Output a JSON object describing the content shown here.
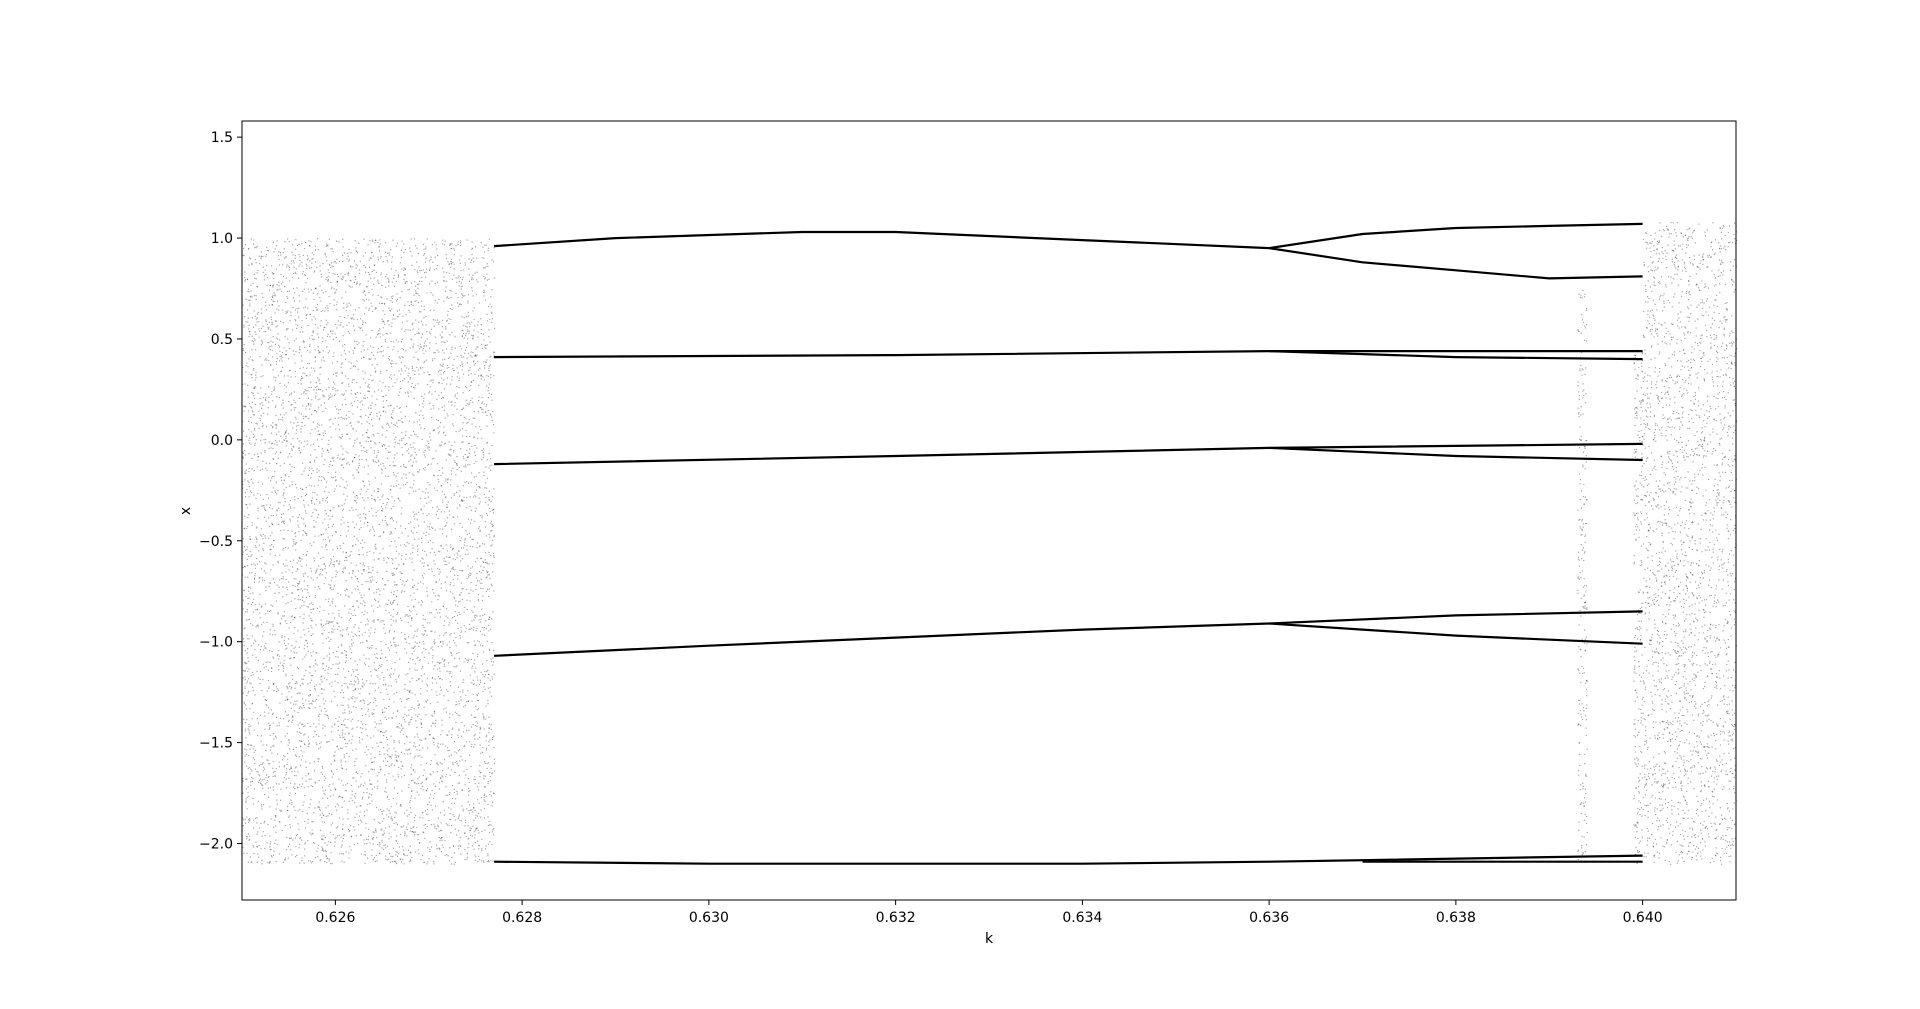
{
  "chart_data": {
    "type": "scatter",
    "title": "",
    "xlabel": "k",
    "ylabel": "x",
    "xlim": [
      0.625,
      0.641
    ],
    "ylim": [
      -2.28,
      1.58
    ],
    "grid": false,
    "legend": "none",
    "marker_color": "#000000",
    "x_ticks": [
      {
        "value": 0.626,
        "label": "0.626"
      },
      {
        "value": 0.628,
        "label": "0.628"
      },
      {
        "value": 0.63,
        "label": "0.630"
      },
      {
        "value": 0.632,
        "label": "0.632"
      },
      {
        "value": 0.634,
        "label": "0.634"
      },
      {
        "value": 0.636,
        "label": "0.636"
      },
      {
        "value": 0.638,
        "label": "0.638"
      },
      {
        "value": 0.64,
        "label": "0.640"
      }
    ],
    "y_ticks": [
      {
        "value": 1.5,
        "label": "1.5"
      },
      {
        "value": 1.0,
        "label": "1.0"
      },
      {
        "value": 0.5,
        "label": "0.5"
      },
      {
        "value": 0.0,
        "label": "0.0"
      },
      {
        "value": -0.5,
        "label": "−0.5"
      },
      {
        "value": -1.0,
        "label": "−1.0"
      },
      {
        "value": -1.5,
        "label": "−1.5"
      },
      {
        "value": -2.0,
        "label": "−2.0"
      }
    ],
    "chaotic_bands": [
      {
        "k_range": [
          0.625,
          0.6277
        ],
        "x_range": [
          -2.1,
          1.0
        ]
      },
      {
        "k_range": [
          0.6393,
          0.6394
        ],
        "x_range": [
          -2.1,
          0.75
        ]
      },
      {
        "k_range": [
          0.6399,
          0.64
        ],
        "x_range": [
          -2.1,
          0.45
        ]
      },
      {
        "k_range": [
          0.64,
          0.641
        ],
        "x_range": [
          -2.1,
          1.08
        ]
      }
    ],
    "branches": [
      {
        "k": [
          0.6277,
          0.629,
          0.631,
          0.632,
          0.634,
          0.636
        ],
        "x": [
          0.96,
          1.0,
          1.03,
          1.03,
          0.99,
          0.95
        ]
      },
      {
        "k": [
          0.636,
          0.637,
          0.638,
          0.639,
          0.64
        ],
        "x": [
          0.95,
          1.02,
          1.05,
          1.06,
          1.07
        ]
      },
      {
        "k": [
          0.636,
          0.637,
          0.638,
          0.639,
          0.64
        ],
        "x": [
          0.95,
          0.88,
          0.84,
          0.8,
          0.81
        ]
      },
      {
        "k": [
          0.6277,
          0.632,
          0.636,
          0.64
        ],
        "x": [
          0.41,
          0.42,
          0.44,
          0.44
        ]
      },
      {
        "k": [
          0.636,
          0.638,
          0.64
        ],
        "x": [
          0.44,
          0.41,
          0.4
        ]
      },
      {
        "k": [
          0.6277,
          0.632,
          0.636,
          0.64
        ],
        "x": [
          -0.12,
          -0.08,
          -0.04,
          -0.02
        ]
      },
      {
        "k": [
          0.636,
          0.638,
          0.64
        ],
        "x": [
          -0.04,
          -0.08,
          -0.1
        ]
      },
      {
        "k": [
          0.6277,
          0.63,
          0.632,
          0.634,
          0.636
        ],
        "x": [
          -1.07,
          -1.02,
          -0.98,
          -0.94,
          -0.91
        ]
      },
      {
        "k": [
          0.636,
          0.638,
          0.64
        ],
        "x": [
          -0.91,
          -0.87,
          -0.85
        ]
      },
      {
        "k": [
          0.636,
          0.637,
          0.638,
          0.64
        ],
        "x": [
          -0.91,
          -0.94,
          -0.97,
          -1.01
        ]
      },
      {
        "k": [
          0.6277,
          0.63,
          0.632,
          0.634,
          0.636,
          0.64
        ],
        "x": [
          -2.09,
          -2.1,
          -2.1,
          -2.1,
          -2.09,
          -2.06
        ]
      },
      {
        "k": [
          0.637,
          0.64
        ],
        "x": [
          -2.09,
          -2.09
        ]
      }
    ]
  }
}
